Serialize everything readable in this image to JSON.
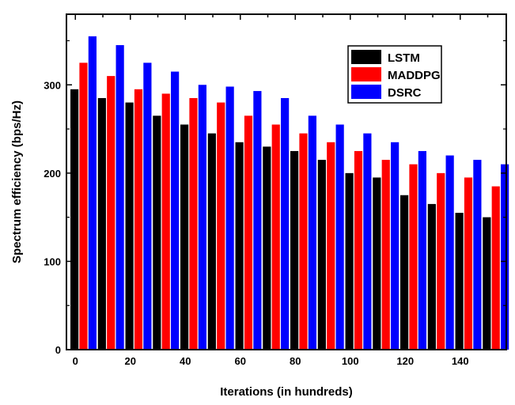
{
  "chart_data": {
    "type": "bar",
    "categories": [
      "0",
      "10",
      "20",
      "30",
      "40",
      "50",
      "60",
      "70",
      "80",
      "90",
      "100",
      "110",
      "120",
      "130",
      "140",
      "150"
    ],
    "x_ticks": [
      "0",
      "20",
      "40",
      "60",
      "80",
      "100",
      "120",
      "140"
    ],
    "y_ticks": [
      "0",
      "100",
      "200",
      "300"
    ],
    "xlabel": "Iterations (in hundreds)",
    "ylabel": "Spectrum efficiency (bps/Hz)",
    "ylim": [
      0,
      380
    ],
    "grid": false,
    "legend_position": "top-right",
    "series": [
      {
        "name": "LSTM",
        "color": "#000000",
        "values": [
          295,
          285,
          280,
          265,
          255,
          245,
          235,
          230,
          225,
          215,
          200,
          195,
          175,
          165,
          155,
          150
        ]
      },
      {
        "name": "MADDPG",
        "color": "#ff0000",
        "values": [
          325,
          310,
          295,
          290,
          285,
          280,
          265,
          255,
          245,
          235,
          225,
          215,
          210,
          200,
          195,
          185
        ]
      },
      {
        "name": "DSRC",
        "color": "#0000ff",
        "values": [
          355,
          345,
          325,
          315,
          300,
          298,
          293,
          285,
          265,
          255,
          245,
          235,
          225,
          220,
          215,
          210
        ]
      }
    ]
  }
}
